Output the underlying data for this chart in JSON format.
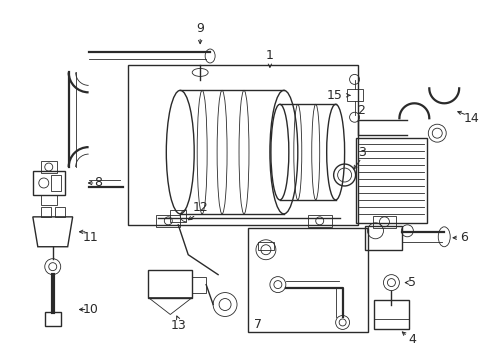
{
  "bg_color": "#ffffff",
  "line_color": "#2a2a2a",
  "lw_thin": 0.6,
  "lw_med": 1.0,
  "lw_thick": 1.6,
  "font_size": 8,
  "fig_w": 4.9,
  "fig_h": 3.6,
  "dpi": 100
}
